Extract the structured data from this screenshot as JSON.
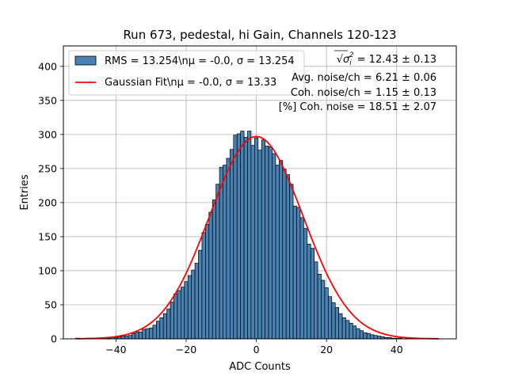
{
  "chart_data": {
    "type": "bar",
    "title": "Run 673, pedestal, hi Gain, Channels 120-123",
    "xlabel": "ADC Counts",
    "ylabel": "Entries",
    "xlim": [
      -55,
      57
    ],
    "ylim": [
      0,
      430
    ],
    "xticks": [
      "−40",
      "−20",
      "0",
      "20",
      "40"
    ],
    "xtick_values": [
      -40,
      -20,
      0,
      20,
      40
    ],
    "yticks": [
      "0",
      "50",
      "100",
      "150",
      "200",
      "250",
      "300",
      "350",
      "400"
    ],
    "ytick_values": [
      0,
      50,
      100,
      150,
      200,
      250,
      300,
      350,
      400
    ],
    "grid": true,
    "legend_placement": "top-left",
    "bar_color": "#4682b4",
    "fit_color": "#ff0000",
    "series": [
      {
        "name": "RMS = 13.254\\nμ = -0.0, σ = 13.254",
        "type": "histogram",
        "bin_width": 1,
        "x": [
          -51,
          -50,
          -49,
          -48,
          -47,
          -46,
          -45,
          -44,
          -43,
          -42,
          -41,
          -40,
          -39,
          -38,
          -37,
          -36,
          -35,
          -34,
          -33,
          -32,
          -31,
          -30,
          -29,
          -28,
          -27,
          -26,
          -25,
          -24,
          -23,
          -22,
          -21,
          -20,
          -19,
          -18,
          -17,
          -16,
          -15,
          -14,
          -13,
          -12,
          -11,
          -10,
          -9,
          -8,
          -7,
          -6,
          -5,
          -4,
          -3,
          -2,
          -1,
          0,
          1,
          2,
          3,
          4,
          5,
          6,
          7,
          8,
          9,
          10,
          11,
          12,
          13,
          14,
          15,
          16,
          17,
          18,
          19,
          20,
          21,
          22,
          23,
          24,
          25,
          26,
          27,
          28,
          29,
          30,
          31,
          32,
          33,
          34,
          35,
          36,
          37,
          38,
          39,
          40,
          41,
          42,
          43,
          44,
          45,
          46,
          47,
          48,
          49,
          50,
          51
        ],
        "values": [
          1,
          0,
          0,
          1,
          0,
          0,
          1,
          0,
          1,
          1,
          2,
          2,
          3,
          4,
          4,
          5,
          8,
          10,
          10,
          14,
          15,
          16,
          20,
          26,
          31,
          37,
          44,
          54,
          66,
          71,
          76,
          84,
          93,
          101,
          111,
          130,
          156,
          168,
          186,
          204,
          227,
          252,
          255,
          265,
          278,
          299,
          301,
          305,
          296,
          305,
          284,
          295,
          277,
          292,
          283,
          282,
          272,
          255,
          262,
          249,
          241,
          227,
          195,
          193,
          178,
          162,
          139,
          133,
          113,
          95,
          86,
          75,
          62,
          53,
          46,
          37,
          31,
          27,
          23,
          19,
          15,
          12,
          9,
          8,
          6,
          5,
          4,
          3,
          2,
          2,
          1,
          1,
          1,
          0,
          1,
          0,
          0,
          0,
          0,
          0,
          0,
          0,
          0
        ]
      },
      {
        "name": "Gaussian Fit\\nμ = -0.0, σ = 13.33",
        "type": "line",
        "mu": 0.0,
        "sigma": 13.33,
        "amplitude": 297,
        "x_range": [
          -51,
          52
        ]
      }
    ],
    "annotations": [
      {
        "prefix": "√",
        "radicand": "σ",
        "sub": "i",
        "sup": "2",
        "text": " = 12.43 ± 0.13"
      },
      {
        "text": "Avg. noise/ch = 6.21 ± 0.06"
      },
      {
        "text": "Coh. noise/ch = 1.15 ± 0.13"
      },
      {
        "text": "[%] Coh. noise = 18.51 ± 2.07"
      }
    ]
  }
}
